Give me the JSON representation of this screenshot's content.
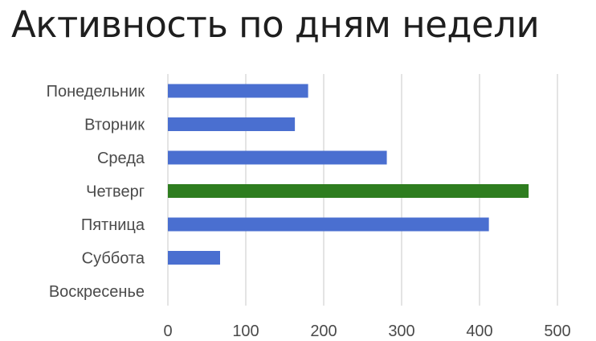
{
  "chart_data": {
    "type": "bar",
    "orientation": "horizontal",
    "title": "Активность по дням недели",
    "categories": [
      "Понедельник",
      "Вторник",
      "Среда",
      "Четверг",
      "Пятница",
      "Суббота",
      "Воскресенье"
    ],
    "values": [
      180,
      163,
      281,
      463,
      412,
      67,
      0
    ],
    "highlight_category": "Четверг",
    "colors": {
      "default_bar": "#4a6fd0",
      "highlight_bar": "#2e7d1f",
      "grid": "#dcdcdc"
    },
    "xlim": [
      0,
      500
    ],
    "x_ticks": [
      "0",
      "100",
      "200",
      "300",
      "400",
      "500"
    ],
    "grid": "vertical",
    "legend": "none"
  }
}
